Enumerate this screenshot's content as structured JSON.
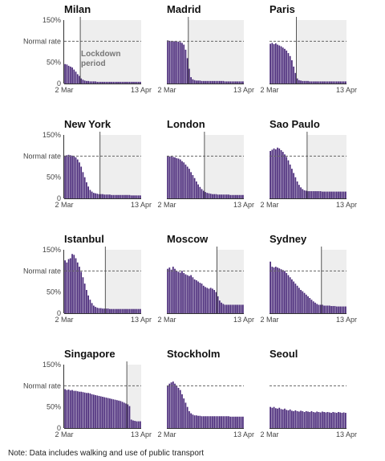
{
  "note": "Note: Data includes walking and use of public transport",
  "colors": {
    "bar": "#4a2a7a",
    "lockdown_shade": "#eeeeee",
    "normal_line": "#666666",
    "lockdown_line": "#555555"
  },
  "chart_data": {
    "type": "bar",
    "layout": "small-multiples-4x3",
    "x_start_label": "2 Mar",
    "x_end_label": "13 Apr",
    "y_tick_labels": [
      "150%",
      "Normal rate",
      "50%",
      "0"
    ],
    "ylim": [
      0,
      150
    ],
    "normal_rate": 100,
    "days": 43,
    "annotation": "Lockdown period",
    "annotation_lines": [
      "Lockdown",
      "period"
    ],
    "grid": false,
    "legend": "none",
    "panels": [
      {
        "name": "Milan",
        "lockdown_day": 9,
        "values": [
          46,
          45,
          42,
          40,
          38,
          33,
          28,
          22,
          18,
          12,
          9,
          7,
          6,
          6,
          5,
          5,
          5,
          5,
          4,
          4,
          4,
          4,
          4,
          4,
          4,
          4,
          4,
          4,
          4,
          4,
          4,
          4,
          4,
          4,
          4,
          4,
          4,
          4,
          4,
          4,
          4,
          4,
          4
        ]
      },
      {
        "name": "Madrid",
        "lockdown_day": 12,
        "values": [
          102,
          101,
          100,
          100,
          100,
          99,
          99,
          98,
          96,
          92,
          80,
          60,
          35,
          15,
          10,
          8,
          7,
          7,
          7,
          6,
          6,
          6,
          6,
          6,
          6,
          6,
          6,
          6,
          6,
          6,
          6,
          6,
          5,
          5,
          5,
          5,
          5,
          5,
          5,
          5,
          5,
          5,
          5
        ]
      },
      {
        "name": "Paris",
        "lockdown_day": 15,
        "values": [
          94,
          96,
          93,
          95,
          92,
          90,
          88,
          85,
          82,
          78,
          72,
          65,
          55,
          40,
          25,
          12,
          8,
          7,
          6,
          6,
          6,
          6,
          5,
          5,
          5,
          5,
          5,
          5,
          5,
          5,
          5,
          5,
          5,
          5,
          5,
          5,
          5,
          5,
          5,
          5,
          5,
          5,
          5
        ]
      },
      {
        "name": "New York",
        "lockdown_day": 20,
        "values": [
          101,
          102,
          103,
          102,
          101,
          100,
          97,
          92,
          85,
          75,
          62,
          50,
          38,
          28,
          20,
          16,
          13,
          12,
          11,
          10,
          10,
          10,
          9,
          9,
          9,
          9,
          8,
          8,
          8,
          8,
          8,
          8,
          8,
          8,
          8,
          8,
          8,
          7,
          7,
          7,
          7,
          7,
          7
        ]
      },
      {
        "name": "London",
        "lockdown_day": 21,
        "values": [
          100,
          99,
          100,
          98,
          97,
          95,
          94,
          92,
          88,
          85,
          80,
          75,
          70,
          62,
          55,
          48,
          40,
          33,
          27,
          22,
          18,
          15,
          13,
          12,
          11,
          10,
          10,
          10,
          9,
          9,
          9,
          9,
          9,
          9,
          9,
          8,
          8,
          8,
          8,
          8,
          8,
          8,
          8
        ]
      },
      {
        "name": "Sao Paulo",
        "lockdown_day": 21,
        "values": [
          112,
          115,
          118,
          116,
          120,
          118,
          114,
          110,
          104,
          98,
          90,
          80,
          70,
          60,
          50,
          40,
          32,
          26,
          22,
          19,
          18,
          17,
          17,
          17,
          17,
          17,
          17,
          17,
          17,
          16,
          16,
          16,
          16,
          16,
          16,
          16,
          16,
          16,
          16,
          16,
          16,
          16,
          16
        ]
      },
      {
        "name": "Istanbul",
        "lockdown_day": 23,
        "values": [
          125,
          120,
          128,
          130,
          140,
          138,
          130,
          120,
          110,
          98,
          85,
          70,
          55,
          42,
          32,
          24,
          18,
          15,
          13,
          12,
          12,
          11,
          11,
          11,
          11,
          10,
          10,
          10,
          10,
          10,
          10,
          10,
          10,
          10,
          10,
          10,
          10,
          10,
          10,
          10,
          10,
          10,
          10
        ]
      },
      {
        "name": "Moscow",
        "lockdown_day": 28,
        "values": [
          105,
          108,
          103,
          110,
          105,
          100,
          98,
          96,
          100,
          95,
          92,
          90,
          88,
          90,
          85,
          80,
          78,
          75,
          72,
          70,
          65,
          62,
          60,
          58,
          60,
          58,
          55,
          50,
          40,
          30,
          25,
          22,
          20,
          20,
          20,
          20,
          20,
          20,
          20,
          20,
          20,
          20,
          20
        ]
      },
      {
        "name": "Sydney",
        "lockdown_day": 29,
        "values": [
          122,
          110,
          108,
          110,
          108,
          106,
          104,
          102,
          100,
          95,
          90,
          85,
          80,
          75,
          70,
          65,
          60,
          55,
          52,
          48,
          44,
          40,
          36,
          32,
          28,
          25,
          22,
          20,
          20,
          20,
          18,
          18,
          18,
          18,
          17,
          17,
          17,
          16,
          16,
          16,
          16,
          16,
          16
        ]
      },
      {
        "name": "Singapore",
        "lockdown_day": 35,
        "values": [
          92,
          90,
          91,
          89,
          90,
          88,
          88,
          87,
          86,
          86,
          85,
          84,
          83,
          83,
          82,
          80,
          79,
          78,
          77,
          76,
          75,
          74,
          73,
          72,
          71,
          70,
          69,
          68,
          67,
          66,
          65,
          64,
          62,
          60,
          58,
          56,
          52,
          20,
          18,
          17,
          16,
          16,
          16
        ]
      },
      {
        "name": "Stockholm",
        "lockdown_day": null,
        "values": [
          100,
          105,
          108,
          110,
          105,
          100,
          95,
          90,
          80,
          70,
          60,
          50,
          40,
          35,
          32,
          30,
          30,
          29,
          29,
          28,
          28,
          28,
          28,
          28,
          28,
          28,
          28,
          28,
          28,
          28,
          28,
          28,
          28,
          28,
          28,
          27,
          27,
          27,
          27,
          27,
          27,
          27,
          27
        ]
      },
      {
        "name": "Seoul",
        "lockdown_day": null,
        "values": [
          50,
          48,
          50,
          47,
          46,
          48,
          45,
          44,
          46,
          43,
          42,
          44,
          41,
          40,
          42,
          40,
          39,
          41,
          40,
          38,
          40,
          39,
          38,
          40,
          38,
          37,
          39,
          38,
          37,
          39,
          38,
          37,
          38,
          37,
          36,
          38,
          37,
          36,
          38,
          37,
          36,
          37,
          36
        ]
      }
    ]
  }
}
